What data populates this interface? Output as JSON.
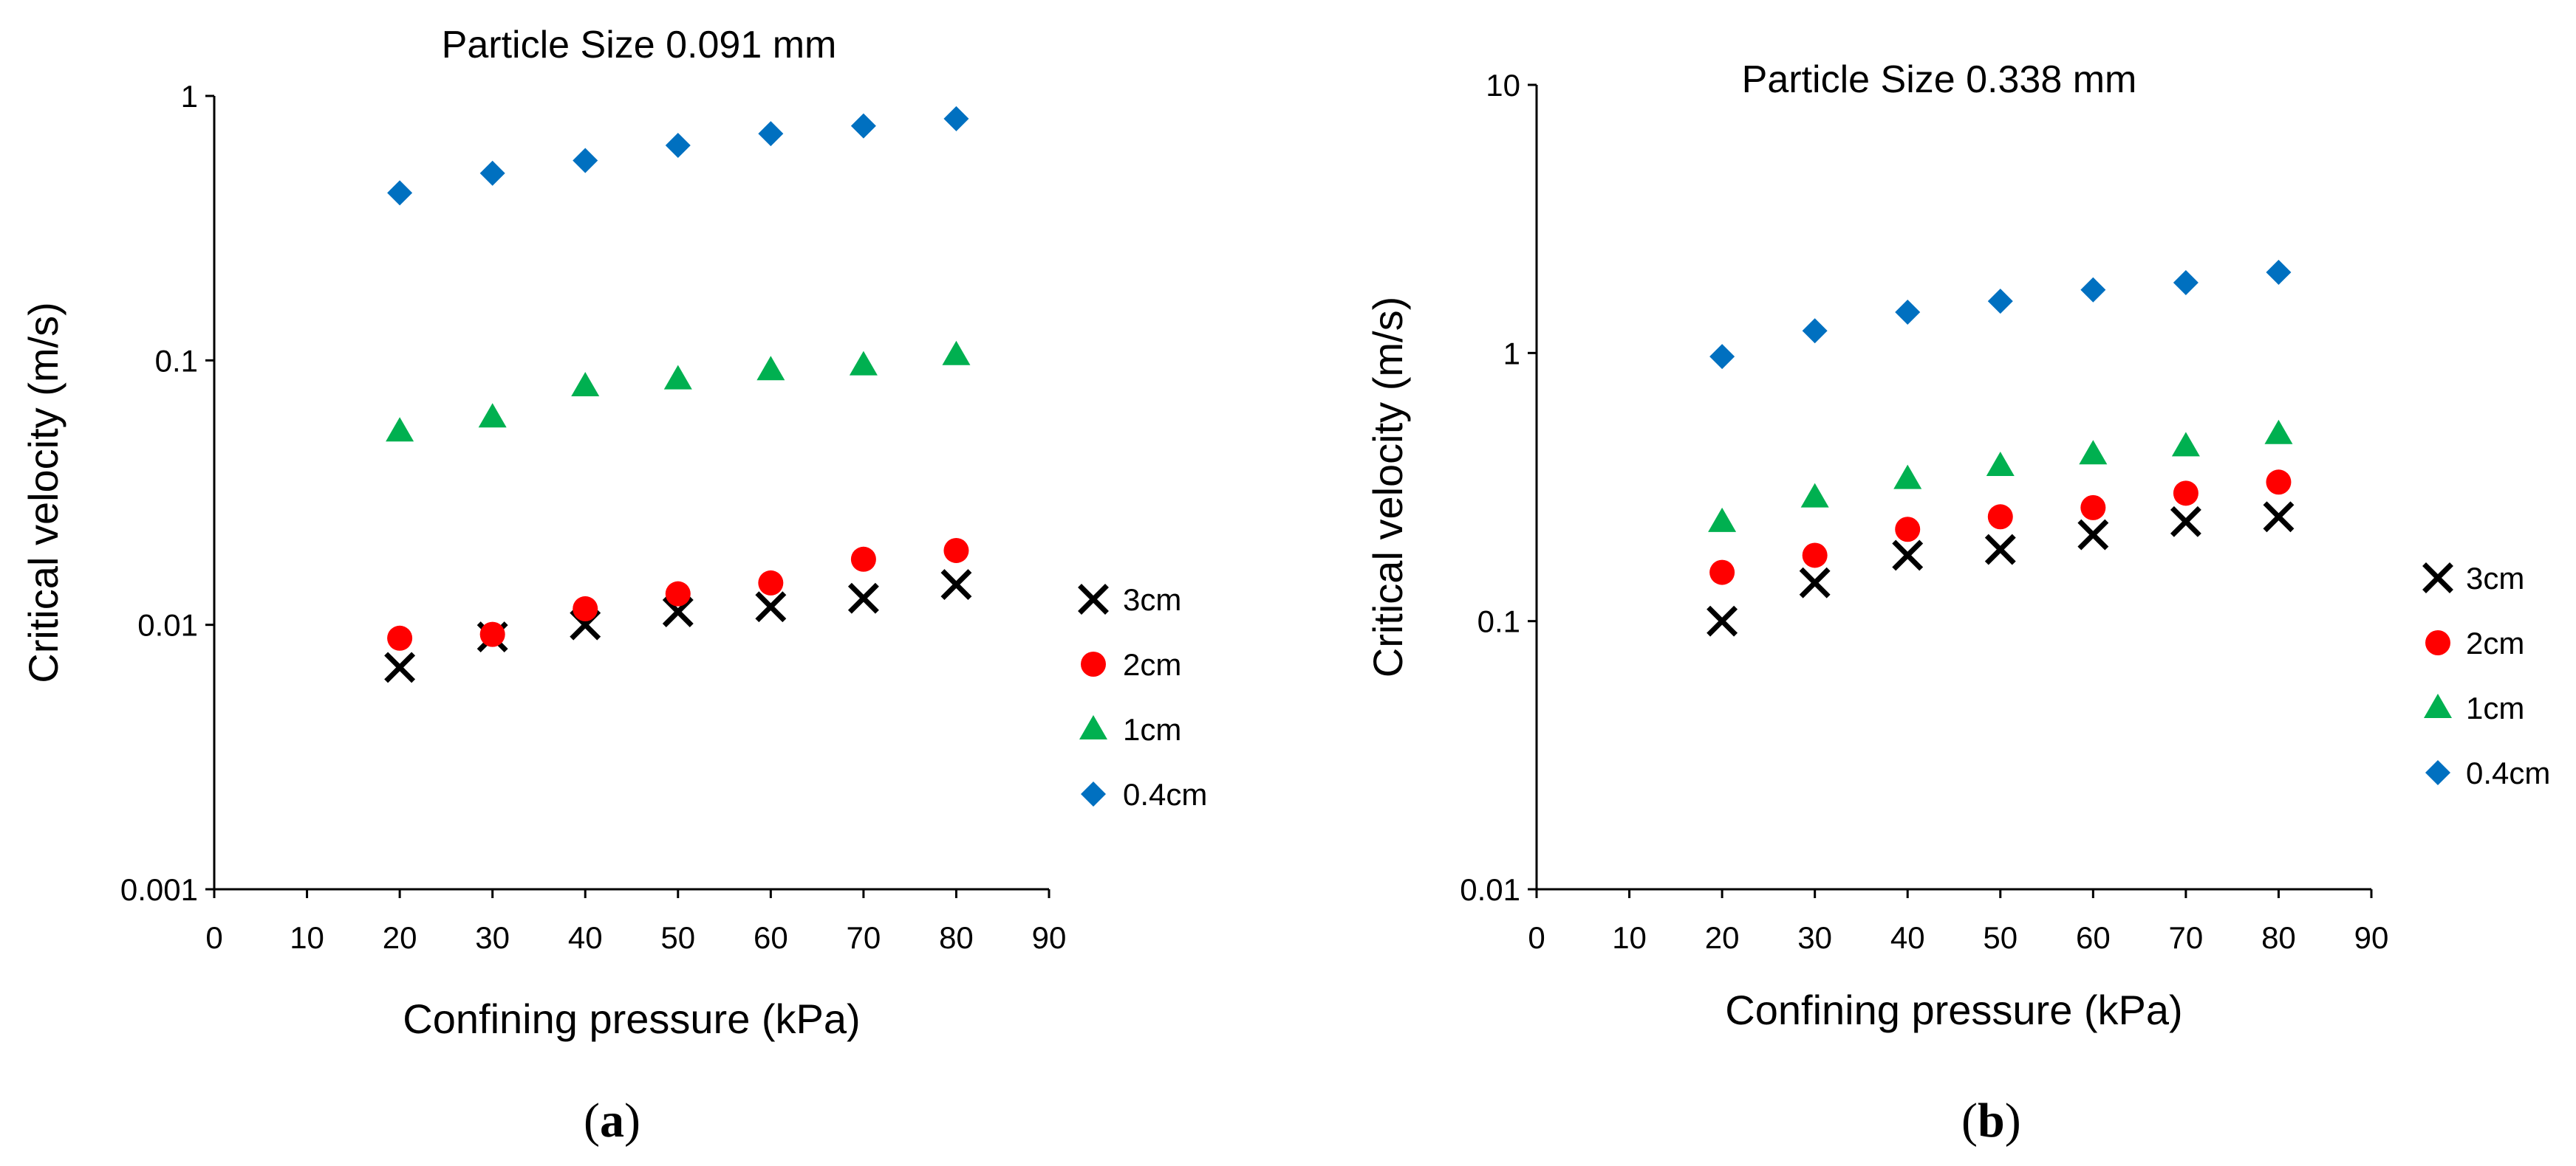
{
  "colors": {
    "3cm": "#000000",
    "2cm": "#ff0000",
    "1cm": "#00b050",
    "0.4cm": "#0070c0"
  },
  "chart_data": [
    {
      "id": "a",
      "type": "scatter",
      "title": "Particle Size 0.091 mm",
      "xlabel": "Confining pressure (kPa)",
      "ylabel": "Critical velocity (m/s)",
      "xlim": [
        0,
        90
      ],
      "ylim": [
        0.001,
        1
      ],
      "yscale": "log",
      "grid": false,
      "legend_position": "right",
      "xticks": [
        "0",
        "10",
        "20",
        "30",
        "40",
        "50",
        "60",
        "70",
        "80",
        "90"
      ],
      "yticks": [
        "0.001",
        "0.01",
        "0.1",
        "1"
      ],
      "panel_label": {
        "open": "(",
        "letter": "a",
        "close": ")"
      },
      "x": [
        20,
        30,
        40,
        50,
        60,
        70,
        80
      ],
      "series": [
        {
          "name": "3cm",
          "marker": "x",
          "values": [
            0.0069,
            0.009,
            0.01,
            0.0112,
            0.0117,
            0.0126,
            0.0142
          ]
        },
        {
          "name": "2cm",
          "marker": "circle",
          "values": [
            0.0089,
            0.0092,
            0.0115,
            0.0131,
            0.0144,
            0.0177,
            0.0191
          ]
        },
        {
          "name": "1cm",
          "marker": "triangle",
          "values": [
            0.054,
            0.061,
            0.08,
            0.085,
            0.092,
            0.096,
            0.105
          ]
        },
        {
          "name": "0.4cm",
          "marker": "diamond",
          "values": [
            0.43,
            0.51,
            0.57,
            0.65,
            0.72,
            0.77,
            0.82
          ]
        }
      ]
    },
    {
      "id": "b",
      "type": "scatter",
      "title": "Particle Size 0.338 mm",
      "xlabel": "Confining pressure (kPa)",
      "ylabel": "Critical velocity (m/s)",
      "xlim": [
        0,
        90
      ],
      "ylim": [
        0.01,
        10
      ],
      "yscale": "log",
      "grid": false,
      "legend_position": "right",
      "xticks": [
        "0",
        "10",
        "20",
        "30",
        "40",
        "50",
        "60",
        "70",
        "80",
        "90"
      ],
      "yticks": [
        "0.01",
        "0.1",
        "1",
        "10"
      ],
      "panel_label": {
        "open": "(",
        "letter": "b",
        "close": ")"
      },
      "x": [
        20,
        30,
        40,
        50,
        60,
        70,
        80
      ],
      "series": [
        {
          "name": "3cm",
          "marker": "x",
          "values": [
            0.1,
            0.139,
            0.176,
            0.185,
            0.21,
            0.235,
            0.245
          ]
        },
        {
          "name": "2cm",
          "marker": "circle",
          "values": [
            0.152,
            0.176,
            0.22,
            0.245,
            0.265,
            0.3,
            0.33
          ]
        },
        {
          "name": "1cm",
          "marker": "triangle",
          "values": [
            0.235,
            0.29,
            0.34,
            0.38,
            0.42,
            0.45,
            0.5
          ]
        },
        {
          "name": "0.4cm",
          "marker": "diamond",
          "values": [
            0.97,
            1.21,
            1.42,
            1.56,
            1.72,
            1.83,
            2.0
          ]
        }
      ]
    }
  ]
}
